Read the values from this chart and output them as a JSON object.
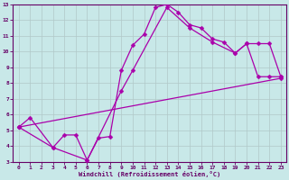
{
  "xlabel": "Windchill (Refroidissement éolien,°C)",
  "bg_color": "#c8e8e8",
  "line_color": "#aa00aa",
  "grid_color": "#b0c8c8",
  "axis_color": "#660066",
  "xlim": [
    -0.5,
    23.5
  ],
  "ylim": [
    3,
    13
  ],
  "xticks": [
    0,
    1,
    2,
    3,
    4,
    5,
    6,
    7,
    8,
    9,
    10,
    11,
    12,
    13,
    14,
    15,
    16,
    17,
    18,
    19,
    20,
    21,
    22,
    23
  ],
  "yticks": [
    3,
    4,
    5,
    6,
    7,
    8,
    9,
    10,
    11,
    12,
    13
  ],
  "line1_x": [
    0,
    1,
    3,
    4,
    5,
    6,
    7,
    8,
    9,
    10,
    11,
    12,
    13,
    14,
    15,
    16,
    17,
    18,
    19,
    20,
    21,
    22,
    23
  ],
  "line1_y": [
    5.2,
    5.8,
    3.9,
    4.7,
    4.7,
    3.1,
    4.5,
    4.6,
    8.8,
    10.4,
    11.1,
    12.8,
    13.0,
    12.5,
    11.7,
    11.5,
    10.8,
    10.6,
    9.9,
    10.5,
    8.4,
    8.4,
    8.4
  ],
  "line2_x": [
    0,
    3,
    6,
    9,
    10,
    13,
    15,
    17,
    19,
    20,
    21,
    22,
    23
  ],
  "line2_y": [
    5.2,
    3.9,
    3.1,
    7.5,
    8.8,
    12.8,
    11.5,
    10.6,
    9.9,
    10.5,
    10.5,
    10.5,
    8.4
  ],
  "line3_x": [
    0,
    23
  ],
  "line3_y": [
    5.2,
    8.3
  ],
  "markersize": 2.5,
  "linewidth": 0.9
}
